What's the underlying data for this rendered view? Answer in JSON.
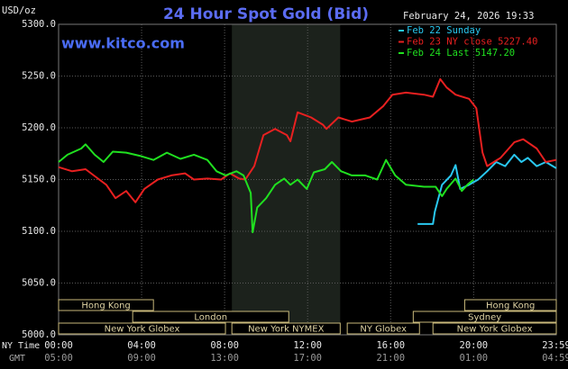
{
  "chart_data": {
    "type": "line",
    "title": "24 Hour Spot Gold (Bid)",
    "y_label": "USD/oz",
    "watermark": "www.kitco.com",
    "timestamp": "February 24, 2026 19:33",
    "x_row_labels": [
      "NY Time",
      "GMT"
    ],
    "xlim": [
      0,
      23.983
    ],
    "xticks": [
      {
        "value": 0,
        "label": "00:00"
      },
      {
        "value": 4,
        "label": "04:00"
      },
      {
        "value": 8,
        "label": "08:00"
      },
      {
        "value": 12,
        "label": "12:00"
      },
      {
        "value": 16,
        "label": "16:00"
      },
      {
        "value": 20,
        "label": "20:00"
      },
      {
        "value": 23.983,
        "label": "23:59"
      }
    ],
    "xticks_gmt": [
      "05:00",
      "09:00",
      "13:00",
      "17:00",
      "21:00",
      "01:00",
      "04:59"
    ],
    "ylim": [
      5000,
      5300
    ],
    "yticks": [
      {
        "value": 5000,
        "label": "5000.0"
      },
      {
        "value": 5050,
        "label": "5050.0"
      },
      {
        "value": 5100,
        "label": "5100.0"
      },
      {
        "value": 5150,
        "label": "5150.0"
      },
      {
        "value": 5200,
        "label": "5200.0"
      },
      {
        "value": 5250,
        "label": "5250.0"
      },
      {
        "value": 5300,
        "label": "5300.0"
      }
    ],
    "grid": true,
    "shade_x": [
      8.35,
      13.57
    ],
    "sessions": [
      [
        {
          "label": "Hong Kong",
          "start": 0,
          "end": 4.57
        },
        {
          "label": "Hong Kong",
          "start": 19.57,
          "end": 23.983
        }
      ],
      [
        {
          "label": "London",
          "start": 3.57,
          "end": 11.09
        },
        {
          "label": "Sydney",
          "start": 17.09,
          "end": 23.983
        }
      ],
      [
        {
          "label": "New York Globex",
          "start": 0,
          "end": 8.04
        },
        {
          "label": "New York NYMEX",
          "start": 8.35,
          "end": 13.57
        },
        {
          "label": "NY Globex",
          "start": 13.91,
          "end": 17.39
        },
        {
          "label": "New York Globex",
          "start": 18.04,
          "end": 23.983
        }
      ]
    ],
    "series": [
      {
        "name": "Feb 22 Sunday",
        "color": "#29c8f0",
        "x": [
          17.3,
          18.04,
          18.13,
          18.48,
          18.91,
          19.13,
          19.35,
          19.78,
          20.22,
          20.65,
          21.09,
          21.52,
          21.96,
          22.3,
          22.61,
          23.04,
          23.48,
          23.98
        ],
        "values": [
          5107,
          5107,
          5119,
          5145,
          5154,
          5164,
          5141,
          5145,
          5150,
          5158,
          5167,
          5163,
          5174,
          5167,
          5171,
          5163,
          5167,
          5161
        ]
      },
      {
        "name": "Feb 23 NY close 5227.40",
        "color": "#e82020",
        "x": [
          0,
          0.65,
          1.3,
          1.96,
          2.3,
          2.74,
          3.26,
          3.7,
          4.13,
          4.78,
          5.43,
          6.09,
          6.52,
          7.17,
          7.83,
          8.26,
          8.7,
          9.0,
          9.43,
          9.87,
          10.43,
          11.0,
          11.17,
          11.52,
          12.17,
          12.74,
          12.91,
          13.48,
          14.13,
          15.0,
          15.65,
          16.09,
          16.74,
          17.61,
          18.04,
          18.39,
          18.7,
          19.13,
          19.78,
          20.13,
          20.43,
          20.65,
          21.3,
          21.96,
          22.39,
          23.04,
          23.48,
          23.98
        ],
        "values": [
          5162,
          5158,
          5160,
          5150,
          5145,
          5132,
          5139,
          5128,
          5141,
          5150,
          5154,
          5156,
          5150,
          5151,
          5150,
          5156,
          5151,
          5150,
          5163,
          5193,
          5199,
          5193,
          5187,
          5215,
          5210,
          5203,
          5199,
          5210,
          5206,
          5210,
          5221,
          5232,
          5234,
          5232,
          5230,
          5247,
          5239,
          5232,
          5228,
          5219,
          5176,
          5163,
          5171,
          5186,
          5189,
          5180,
          5167,
          5169
        ]
      },
      {
        "name": "Feb 24 Last 5147.20",
        "color": "#20e020",
        "x": [
          0,
          0.43,
          1.09,
          1.3,
          1.74,
          2.17,
          2.61,
          3.26,
          3.91,
          4.57,
          5.22,
          5.87,
          6.52,
          7.17,
          7.61,
          8.04,
          8.57,
          8.91,
          9.26,
          9.35,
          9.57,
          10.0,
          10.43,
          10.87,
          11.17,
          11.52,
          11.96,
          12.3,
          12.83,
          13.17,
          13.61,
          14.13,
          14.78,
          15.35,
          15.78,
          16.22,
          16.74,
          17.61,
          18.17,
          18.48,
          18.7,
          19.13,
          19.43,
          19.7,
          20.0
        ],
        "values": [
          5167,
          5174,
          5180,
          5184,
          5174,
          5167,
          5177,
          5176,
          5173,
          5169,
          5176,
          5170,
          5174,
          5169,
          5158,
          5154,
          5158,
          5154,
          5137,
          5099,
          5123,
          5132,
          5145,
          5151,
          5145,
          5150,
          5141,
          5157,
          5160,
          5167,
          5158,
          5154,
          5154,
          5150,
          5169,
          5154,
          5145,
          5143,
          5143,
          5134,
          5141,
          5151,
          5139,
          5145,
          5150
        ]
      }
    ]
  }
}
